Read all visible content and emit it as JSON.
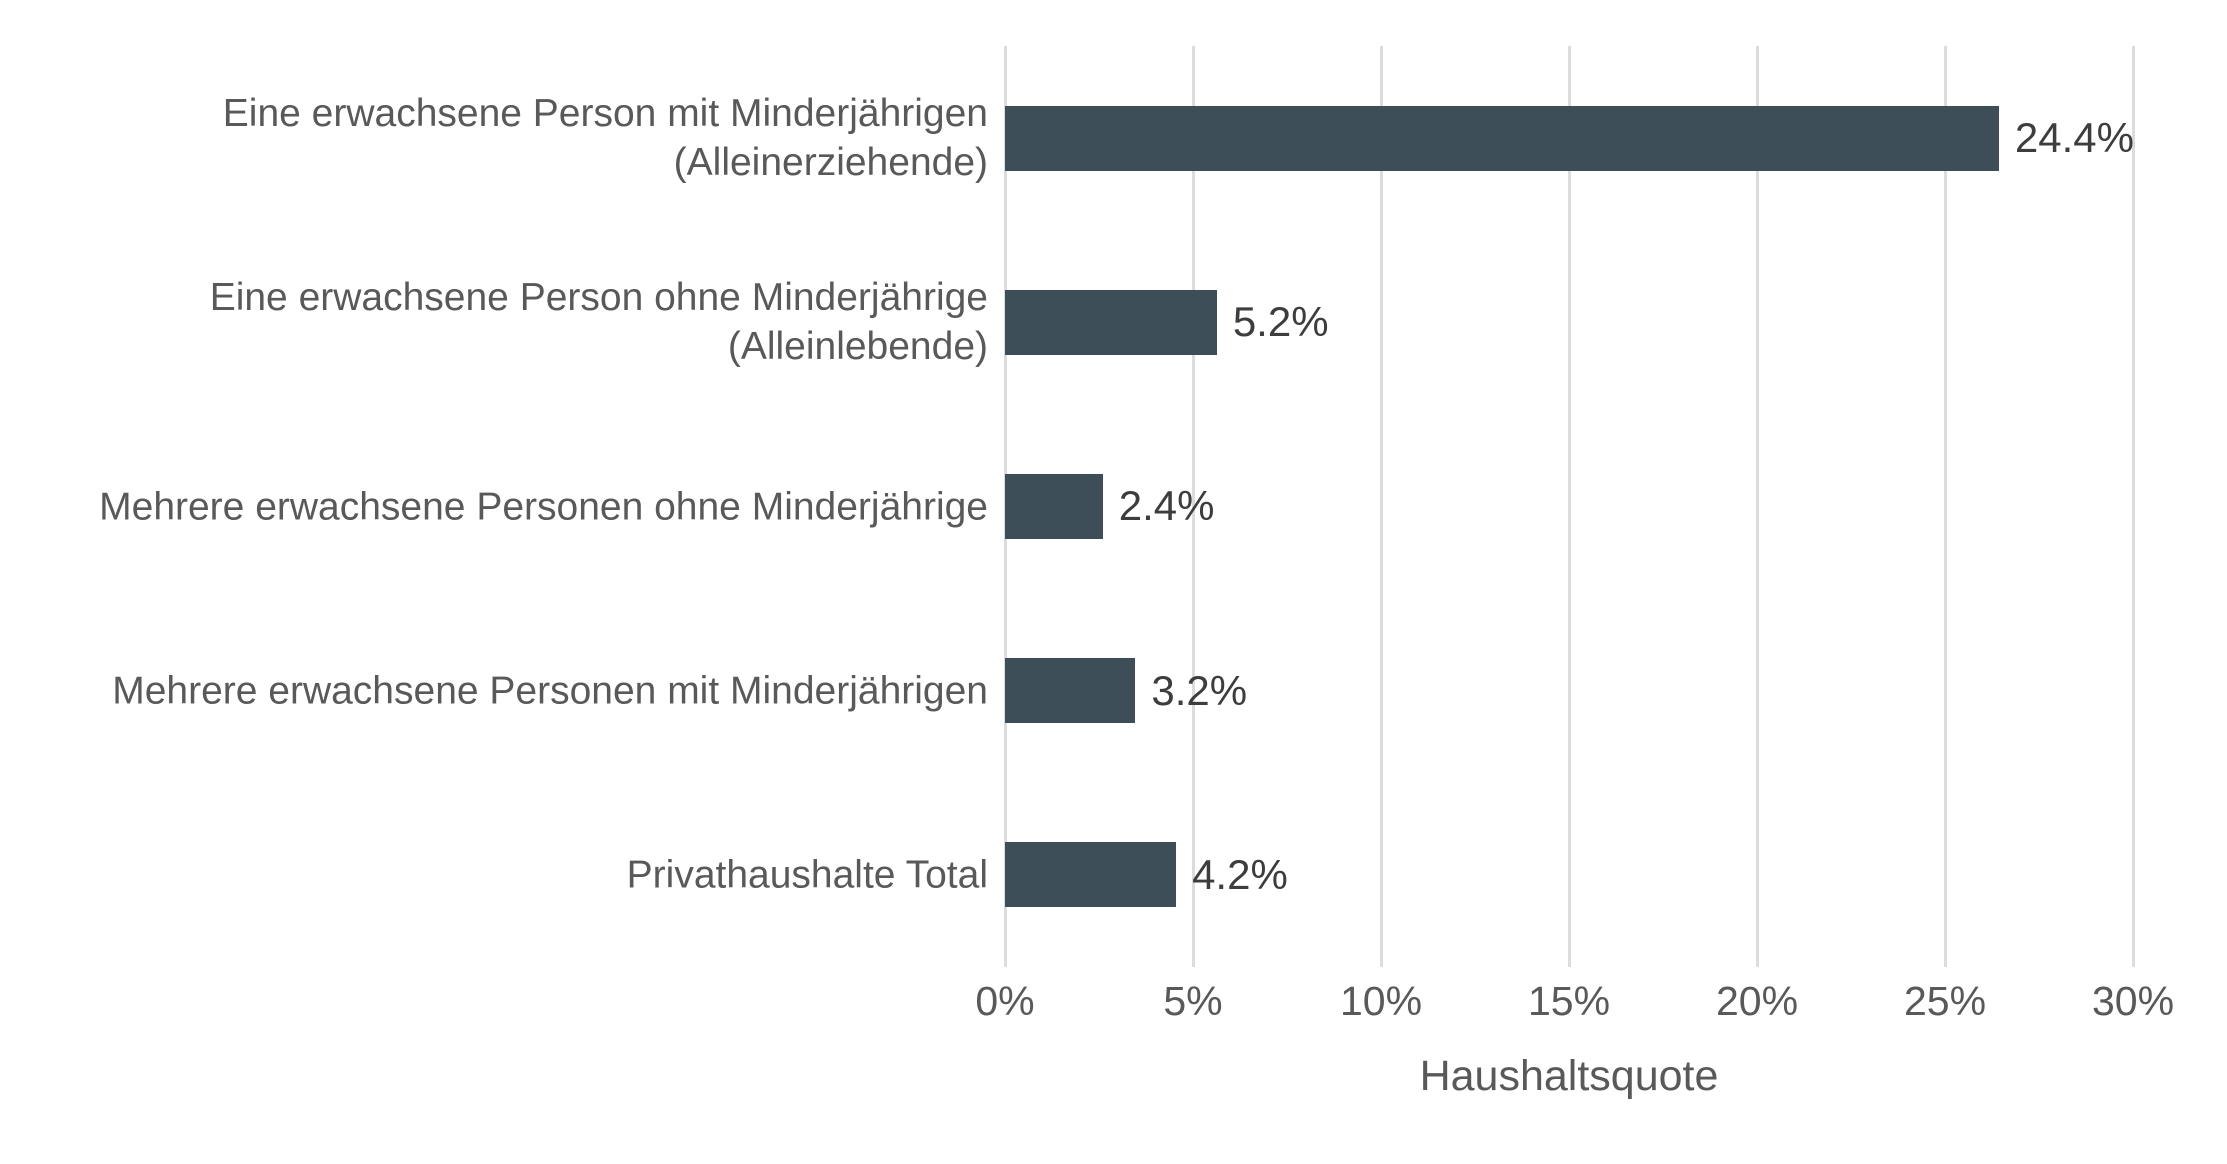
{
  "chart_data": {
    "type": "bar",
    "orientation": "horizontal",
    "title": "",
    "categories": [
      "Eine erwachsene Person mit Minderjährigen\n(Alleinerziehende)",
      "Eine erwachsene Person ohne Minderjährige\n(Alleinlebende)",
      "Mehrere erwachsene Personen ohne Minderjährige",
      "Mehrere erwachsene Personen mit Minderjährigen",
      "Privathaushalte Total"
    ],
    "values": [
      24.4,
      5.2,
      2.4,
      3.2,
      4.2
    ],
    "value_labels": [
      "24.4%",
      "5.2%",
      "2.4%",
      "3.2%",
      "4.2%"
    ],
    "xlabel": "Haushaltsquote",
    "ylabel": "",
    "xlim": [
      0,
      30
    ],
    "x_ticks": [
      0,
      5,
      10,
      15,
      20,
      25,
      30
    ],
    "x_tick_labels": [
      "0%",
      "5%",
      "10%",
      "15%",
      "20%",
      "25%",
      "30%"
    ],
    "grid": "vertical-gridlines-only",
    "legend": "none",
    "colors": {
      "bar": "#3d4e58",
      "gridline": "#dcdcdc",
      "category_label": "#595959",
      "tick_label": "#595959",
      "value_label": "#3d3d3d",
      "axis_title": "#595959",
      "background": "#ffffff"
    }
  }
}
